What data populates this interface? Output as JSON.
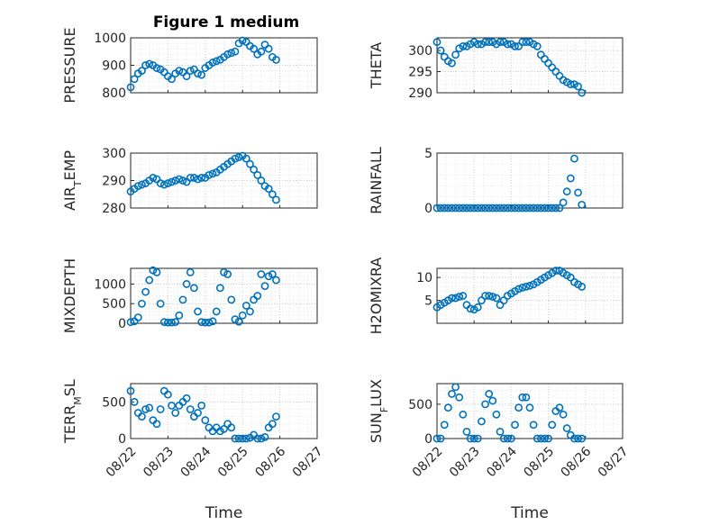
{
  "figure": {
    "title": "Figure 1 medium"
  },
  "marker_color": "#0072BD",
  "chart_data": [
    {
      "type": "scatter",
      "ylabel": "PRESSURE",
      "ylim": [
        800,
        1000
      ],
      "yticks": [
        800,
        900,
        1000
      ],
      "xlabel": "",
      "xtick_labels": [],
      "x": [
        0,
        0.1,
        0.2,
        0.3,
        0.4,
        0.5,
        0.6,
        0.7,
        0.8,
        0.9,
        1.0,
        1.1,
        1.2,
        1.3,
        1.4,
        1.5,
        1.6,
        1.7,
        1.8,
        1.9,
        2.0,
        2.1,
        2.2,
        2.3,
        2.4,
        2.5,
        2.6,
        2.7,
        2.8,
        2.9,
        3.0,
        3.1,
        3.2,
        3.3,
        3.4,
        3.5,
        3.6,
        3.7,
        3.8,
        3.9
      ],
      "y": [
        820,
        850,
        870,
        880,
        900,
        905,
        900,
        890,
        885,
        875,
        860,
        850,
        870,
        880,
        875,
        860,
        880,
        885,
        870,
        865,
        890,
        900,
        910,
        915,
        920,
        930,
        940,
        945,
        950,
        980,
        990,
        985,
        970,
        960,
        940,
        950,
        975,
        960,
        930,
        920
      ]
    },
    {
      "type": "scatter",
      "ylabel": "THETA",
      "ylim": [
        290,
        303
      ],
      "yticks": [
        290,
        295,
        300
      ],
      "xlabel": "",
      "xtick_labels": [],
      "x": [
        0,
        0.1,
        0.2,
        0.3,
        0.4,
        0.5,
        0.6,
        0.7,
        0.8,
        0.9,
        1.0,
        1.1,
        1.2,
        1.3,
        1.4,
        1.5,
        1.6,
        1.7,
        1.8,
        1.9,
        2.0,
        2.1,
        2.2,
        2.3,
        2.4,
        2.5,
        2.6,
        2.7,
        2.8,
        2.9,
        3.0,
        3.1,
        3.2,
        3.3,
        3.4,
        3.5,
        3.6,
        3.7,
        3.8,
        3.9
      ],
      "y": [
        302,
        300,
        298.5,
        297.5,
        297,
        299,
        300.5,
        301,
        301,
        301.5,
        302,
        301.5,
        301.5,
        302,
        302,
        302,
        301.5,
        302,
        302,
        301.5,
        301.5,
        301,
        301,
        302,
        302,
        302,
        301.5,
        301,
        299,
        298,
        297,
        296,
        295,
        294,
        293,
        292.5,
        292,
        292,
        291.5,
        290
      ]
    },
    {
      "type": "scatter",
      "ylabel": "AIR_TEMP",
      "ylim": [
        280,
        300
      ],
      "yticks": [
        280,
        290,
        300
      ],
      "xlabel": "",
      "xtick_labels": [],
      "x": [
        0,
        0.1,
        0.2,
        0.3,
        0.4,
        0.5,
        0.6,
        0.7,
        0.8,
        0.9,
        1.0,
        1.1,
        1.2,
        1.3,
        1.4,
        1.5,
        1.6,
        1.7,
        1.8,
        1.9,
        2.0,
        2.1,
        2.2,
        2.3,
        2.4,
        2.5,
        2.6,
        2.7,
        2.8,
        2.9,
        3.0,
        3.1,
        3.2,
        3.3,
        3.4,
        3.5,
        3.6,
        3.7,
        3.8,
        3.9
      ],
      "y": [
        286,
        287,
        288,
        288.5,
        289,
        290,
        291,
        290.5,
        289,
        288.5,
        289,
        289.5,
        290,
        290.5,
        290,
        289.5,
        291,
        291,
        290.5,
        291,
        291,
        292,
        292.5,
        293,
        294,
        295,
        296,
        297,
        298,
        298.5,
        299,
        298,
        296,
        294,
        292,
        290,
        288,
        287,
        285,
        283
      ]
    },
    {
      "type": "scatter",
      "ylabel": "RAINFALL",
      "ylim": [
        0,
        5
      ],
      "yticks": [
        0,
        5
      ],
      "xlabel": "",
      "xtick_labels": [],
      "x": [
        0,
        0.1,
        0.2,
        0.3,
        0.4,
        0.5,
        0.6,
        0.7,
        0.8,
        0.9,
        1.0,
        1.1,
        1.2,
        1.3,
        1.4,
        1.5,
        1.6,
        1.7,
        1.8,
        1.9,
        2.0,
        2.1,
        2.2,
        2.3,
        2.4,
        2.5,
        2.6,
        2.7,
        2.8,
        2.9,
        3.0,
        3.1,
        3.2,
        3.3,
        3.4,
        3.5,
        3.6,
        3.7,
        3.8,
        3.9
      ],
      "y": [
        0,
        0,
        0,
        0,
        0,
        0,
        0,
        0,
        0,
        0,
        0,
        0,
        0,
        0,
        0,
        0,
        0,
        0,
        0,
        0,
        0,
        0,
        0,
        0,
        0,
        0,
        0,
        0,
        0,
        0,
        0,
        0,
        0,
        0,
        0.5,
        1.5,
        2.7,
        4.5,
        1.4,
        0.3
      ]
    },
    {
      "type": "scatter",
      "ylabel": "MIXDEPTH",
      "ylim": [
        0,
        1400
      ],
      "yticks": [
        0,
        500,
        1000
      ],
      "xlabel": "",
      "xtick_labels": [],
      "x": [
        0,
        0.1,
        0.2,
        0.3,
        0.4,
        0.5,
        0.6,
        0.7,
        0.8,
        0.9,
        1.0,
        1.1,
        1.2,
        1.3,
        1.4,
        1.5,
        1.6,
        1.7,
        1.8,
        1.9,
        2.0,
        2.1,
        2.2,
        2.3,
        2.4,
        2.5,
        2.6,
        2.7,
        2.8,
        2.9,
        3.0,
        3.1,
        3.2,
        3.3,
        3.4,
        3.5,
        3.6,
        3.7,
        3.8,
        3.9
      ],
      "y": [
        30,
        50,
        150,
        500,
        800,
        1100,
        1350,
        1300,
        500,
        30,
        20,
        20,
        30,
        200,
        600,
        1000,
        1300,
        900,
        300,
        30,
        20,
        20,
        50,
        300,
        900,
        1300,
        1250,
        600,
        100,
        40,
        200,
        450,
        300,
        600,
        700,
        1250,
        950,
        1200,
        1250,
        1100
      ]
    },
    {
      "type": "scatter",
      "ylabel": "H2OMIXRA",
      "ylim": [
        0,
        12
      ],
      "yticks": [
        5,
        10
      ],
      "xlabel": "",
      "xtick_labels": [],
      "x": [
        0,
        0.1,
        0.2,
        0.3,
        0.4,
        0.5,
        0.6,
        0.7,
        0.8,
        0.9,
        1.0,
        1.1,
        1.2,
        1.3,
        1.4,
        1.5,
        1.6,
        1.7,
        1.8,
        1.9,
        2.0,
        2.1,
        2.2,
        2.3,
        2.4,
        2.5,
        2.6,
        2.7,
        2.8,
        2.9,
        3.0,
        3.1,
        3.2,
        3.3,
        3.4,
        3.5,
        3.6,
        3.7,
        3.8,
        3.9
      ],
      "y": [
        3.5,
        4,
        4.5,
        5,
        5.5,
        5.5,
        5.8,
        6,
        4,
        3.2,
        3,
        3.5,
        5,
        6,
        6,
        5.8,
        5.5,
        4,
        5,
        6,
        6.5,
        7,
        7.5,
        7.8,
        8,
        8.2,
        8.5,
        9,
        9.5,
        10,
        10.5,
        11,
        11.5,
        11.5,
        11,
        10.5,
        10,
        9,
        8.5,
        8
      ]
    },
    {
      "type": "scatter",
      "ylabel": "TERR_MSL",
      "ylim": [
        0,
        750
      ],
      "yticks": [
        0,
        500
      ],
      "xlabel": "Time",
      "xtick_labels": [
        "08/22",
        "08/23",
        "08/24",
        "08/25",
        "08/26",
        "08/27"
      ],
      "x": [
        0,
        0.1,
        0.2,
        0.3,
        0.4,
        0.5,
        0.6,
        0.7,
        0.8,
        0.9,
        1.0,
        1.1,
        1.2,
        1.3,
        1.4,
        1.5,
        1.6,
        1.7,
        1.8,
        1.9,
        2.0,
        2.1,
        2.2,
        2.3,
        2.4,
        2.5,
        2.6,
        2.7,
        2.8,
        2.9,
        3.0,
        3.1,
        3.2,
        3.3,
        3.4,
        3.5,
        3.6,
        3.7,
        3.8,
        3.9
      ],
      "y": [
        650,
        500,
        350,
        300,
        400,
        420,
        250,
        200,
        400,
        650,
        600,
        450,
        350,
        450,
        500,
        550,
        400,
        300,
        350,
        450,
        250,
        150,
        100,
        150,
        100,
        130,
        200,
        150,
        0,
        0,
        0,
        0,
        10,
        50,
        0,
        0,
        20,
        150,
        200,
        300
      ]
    },
    {
      "type": "scatter",
      "ylabel": "SUN_FLUX",
      "ylim": [
        0,
        800
      ],
      "yticks": [
        0,
        500
      ],
      "xlabel": "Time",
      "xtick_labels": [
        "08/22",
        "08/23",
        "08/24",
        "08/25",
        "08/26",
        "08/27"
      ],
      "x": [
        0,
        0.1,
        0.2,
        0.3,
        0.4,
        0.5,
        0.6,
        0.7,
        0.8,
        0.9,
        1.0,
        1.1,
        1.2,
        1.3,
        1.4,
        1.5,
        1.6,
        1.7,
        1.8,
        1.9,
        2.0,
        2.1,
        2.2,
        2.3,
        2.4,
        2.5,
        2.6,
        2.7,
        2.8,
        2.9,
        3.0,
        3.1,
        3.2,
        3.3,
        3.4,
        3.5,
        3.6,
        3.7,
        3.8,
        3.9
      ],
      "y": [
        0,
        0,
        200,
        450,
        650,
        750,
        600,
        350,
        100,
        0,
        0,
        0,
        250,
        500,
        650,
        550,
        350,
        100,
        0,
        0,
        0,
        200,
        450,
        600,
        600,
        450,
        200,
        0,
        0,
        0,
        0,
        200,
        400,
        450,
        350,
        150,
        50,
        0,
        0,
        0
      ]
    }
  ]
}
